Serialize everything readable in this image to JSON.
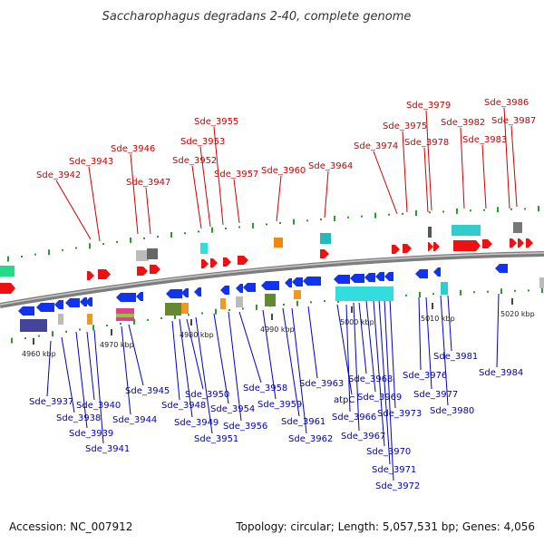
{
  "title": "Saccharophagus degradans 2-40, complete genome",
  "footer": {
    "accession": "Accession: NC_007912",
    "summary": "Topology: circular; Length: 5,057,531 bp; Genes: 4,056"
  },
  "colors": {
    "forward_label": "#cc0000",
    "reverse_label": "#0000bb",
    "backbone": "#888888",
    "tick": "#2a9a2a"
  },
  "axis_ticks": [
    "4960 kbp",
    "4970 kbp",
    "4980 kbp",
    "4990 kbp",
    "5000 kbp",
    "5010 kbp",
    "5020 kbp"
  ],
  "forward_genes": [
    "Sde_3942",
    "Sde_3943",
    "Sde_3946",
    "Sde_3947",
    "Sde_3952",
    "Sde_3953",
    "Sde_3955",
    "Sde_3957",
    "Sde_3960",
    "Sde_3964",
    "Sde_3974",
    "Sde_3975",
    "Sde_3978",
    "Sde_3979",
    "Sde_3982",
    "Sde_3983",
    "Sde_3986",
    "Sde_3987"
  ],
  "reverse_genes": [
    "Sde_3937",
    "Sde_3938",
    "Sde_3939",
    "Sde_3940",
    "Sde_3941",
    "Sde_3944",
    "Sde_3945",
    "Sde_3948",
    "Sde_3949",
    "Sde_3950",
    "Sde_3951",
    "Sde_3954",
    "Sde_3956",
    "Sde_3958",
    "Sde_3959",
    "Sde_3961",
    "Sde_3962",
    "Sde_3963",
    "atpC",
    "Sde_3966",
    "Sde_3967",
    "Sde_3968",
    "Sde_3969",
    "Sde_3970",
    "Sde_3971",
    "Sde_3972",
    "Sde_3973",
    "Sde_3976",
    "Sde_3977",
    "Sde_3980",
    "Sde_3981",
    "Sde_3984"
  ]
}
